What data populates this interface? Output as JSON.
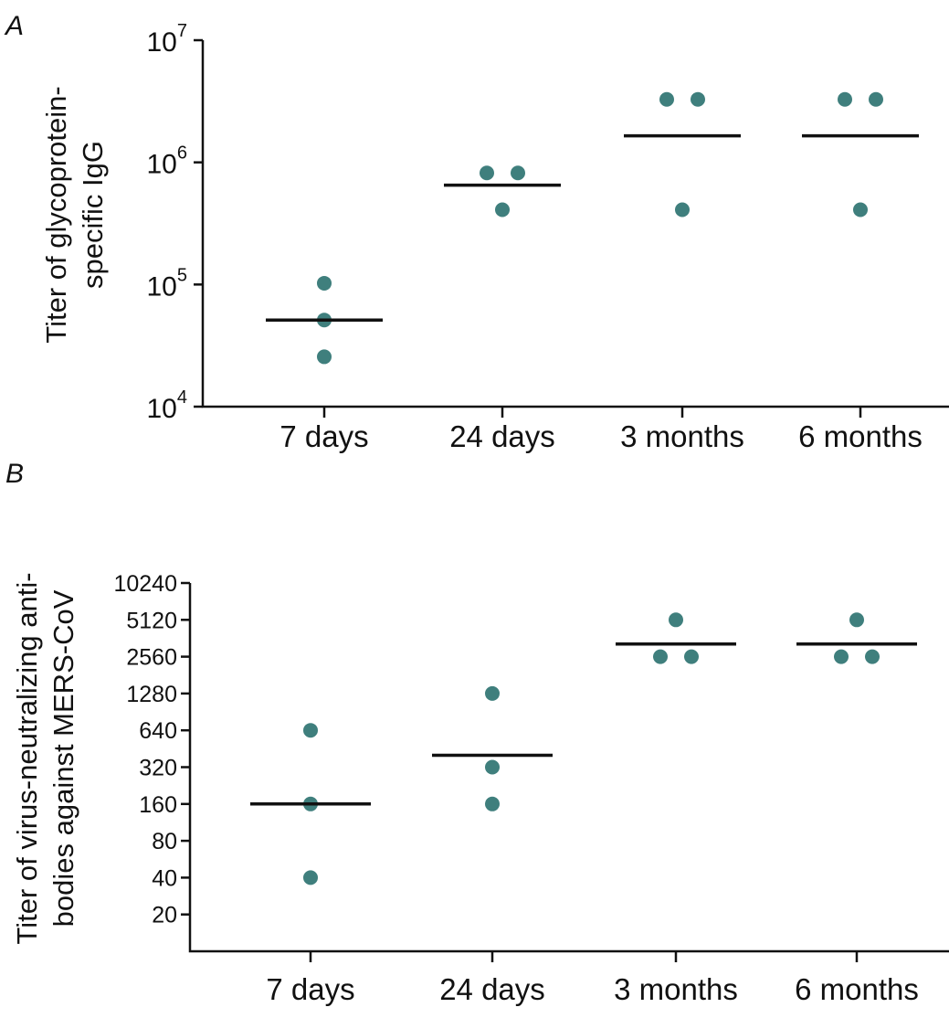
{
  "chart_data": [
    {
      "panel": "A",
      "type": "scatter",
      "ylabel_lines": [
        "Titer of glycoprotein-",
        "specific IgG"
      ],
      "categories": [
        "7 days",
        "24 days",
        "3 months",
        "6 months"
      ],
      "yscale": "log10",
      "ylim": [
        10000,
        10000000
      ],
      "yticks": [
        {
          "base": "10",
          "exp": "4",
          "value": 10000
        },
        {
          "base": "10",
          "exp": "5",
          "value": 100000
        },
        {
          "base": "10",
          "exp": "6",
          "value": 1000000
        },
        {
          "base": "10",
          "exp": "7",
          "value": 10000000
        }
      ],
      "points": [
        {
          "category": "7 days",
          "values": [
            102400,
            51200,
            25600
          ]
        },
        {
          "category": "24 days",
          "values": [
            819200,
            819200,
            409600
          ]
        },
        {
          "category": "3 months",
          "values": [
            3276800,
            3276800,
            409600
          ]
        },
        {
          "category": "6 months",
          "values": [
            3276800,
            3276800,
            409600
          ]
        }
      ],
      "medians": [
        51200,
        650000,
        1650000,
        1650000
      ],
      "point_color": "#3f7f7d"
    },
    {
      "panel": "B",
      "type": "scatter",
      "ylabel_lines": [
        "Titer of virus-neutralizing anti-",
        "bodies against MERS-CoV"
      ],
      "categories": [
        "7 days",
        "24 days",
        "3 months",
        "6 months"
      ],
      "yscale": "log2",
      "ylim": [
        10,
        10240
      ],
      "yticks": [
        "20",
        "40",
        "80",
        "160",
        "320",
        "640",
        "1280",
        "2560",
        "5120",
        "10240"
      ],
      "points": [
        {
          "category": "7 days",
          "values": [
            640,
            160,
            40
          ]
        },
        {
          "category": "24 days",
          "values": [
            1280,
            320,
            160
          ]
        },
        {
          "category": "3 months",
          "values": [
            5120,
            2560,
            2560
          ]
        },
        {
          "category": "6 months",
          "values": [
            5120,
            2560,
            2560
          ]
        }
      ],
      "medians": [
        160,
        400,
        3250,
        3250
      ],
      "point_color": "#3f7f7d"
    }
  ]
}
